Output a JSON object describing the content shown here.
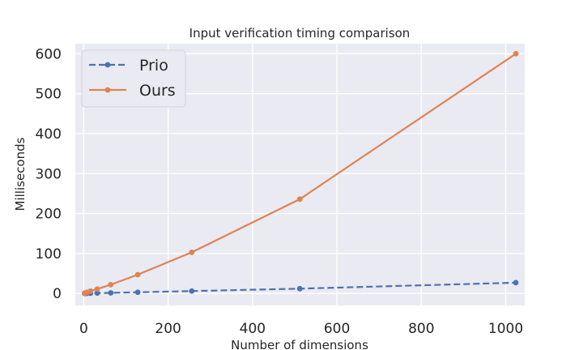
{
  "chart_data": {
    "type": "line",
    "title": "Input verification timing comparison",
    "xlabel": "Number of dimensions",
    "ylabel": "Milliseconds",
    "xlim": [
      -20,
      1045
    ],
    "ylim": [
      -30,
      625
    ],
    "x_ticks": [
      0,
      200,
      400,
      600,
      800,
      1000
    ],
    "y_ticks": [
      0,
      100,
      200,
      300,
      400,
      500,
      600
    ],
    "x_tick_labels": [
      "0",
      "200",
      "400",
      "600",
      "800",
      "1000"
    ],
    "y_tick_labels": [
      "0",
      "100",
      "200",
      "300",
      "400",
      "500",
      "600"
    ],
    "grid": true,
    "legend_position": "top-left",
    "series": [
      {
        "name": "Prio",
        "color": "#4c72b0",
        "line_style": "dashed",
        "marker": "circle",
        "x": [
          2,
          4,
          8,
          16,
          32,
          64,
          128,
          256,
          512,
          1024
        ],
        "y": [
          0.2,
          0.3,
          0.4,
          0.6,
          0.9,
          1.5,
          3,
          6,
          12,
          27
        ]
      },
      {
        "name": "Ours",
        "color": "#dd8452",
        "line_style": "solid",
        "marker": "circle",
        "x": [
          2,
          4,
          8,
          16,
          32,
          64,
          128,
          256,
          512,
          1024
        ],
        "y": [
          0.8,
          1.5,
          3,
          6,
          11,
          22,
          47,
          103,
          236,
          600
        ]
      }
    ]
  }
}
